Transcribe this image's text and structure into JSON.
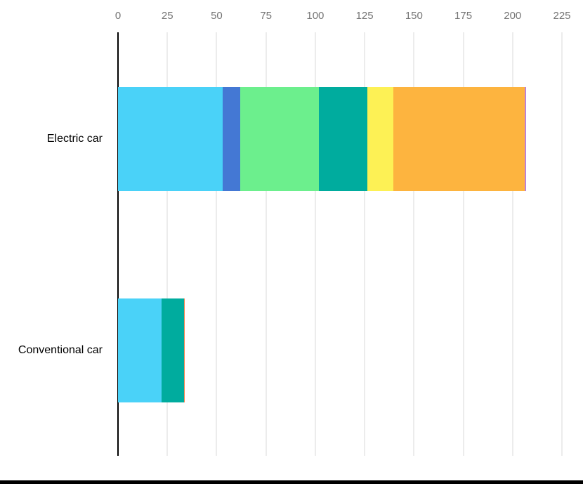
{
  "chart_data": {
    "type": "bar",
    "orientation": "horizontal",
    "title": "",
    "xlabel": "",
    "ylabel": "",
    "categories": [
      "Electric car",
      "Conventional car"
    ],
    "series": [
      {
        "name": "segment-cyan",
        "color": "#4AD2F8",
        "values": [
          53,
          22
        ]
      },
      {
        "name": "segment-blue",
        "color": "#4478D4",
        "values": [
          9,
          0
        ]
      },
      {
        "name": "segment-green",
        "color": "#6CEF8D",
        "values": [
          40,
          0
        ]
      },
      {
        "name": "segment-teal",
        "color": "#00AC9E",
        "values": [
          24.5,
          11.5
        ]
      },
      {
        "name": "segment-yellow",
        "color": "#FDF155",
        "values": [
          13,
          0
        ]
      },
      {
        "name": "segment-orange",
        "color": "#FDB43F",
        "values": [
          66.5,
          0
        ]
      },
      {
        "name": "segment-pink",
        "color": "#F07EC0",
        "values": [
          0.5,
          0
        ]
      },
      {
        "name": "segment-purple",
        "color": "#9C86E3",
        "values": [
          0.5,
          0
        ]
      },
      {
        "name": "segment-salmon",
        "color": "#F5824D",
        "values": [
          0,
          0.5
        ]
      }
    ],
    "totals": [
      207,
      34
    ],
    "x_ticks": [
      0,
      25,
      50,
      75,
      100,
      125,
      150,
      175,
      200,
      225
    ],
    "xlim": [
      0,
      225
    ],
    "axis_position": "top",
    "grid": "vertical",
    "legend_position": "none",
    "tick_label_color": "#757575",
    "gridline_color": "#ECECEC",
    "baseline_color": "#000000",
    "background_color": "#FFFFFF"
  }
}
